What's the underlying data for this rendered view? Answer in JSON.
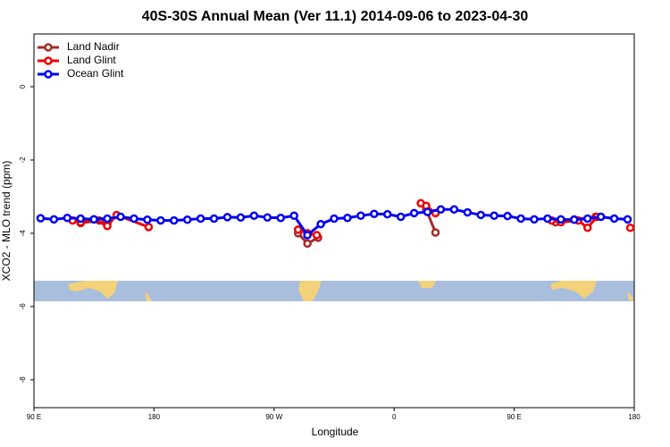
{
  "chart_data": {
    "type": "line",
    "title": "40S-30S Annual Mean (Ver 11.1)   2014-09-06 to 2023-04-30",
    "x_label": "Longitude",
    "y_label": "XCO2 - MLO trend (ppm)",
    "xlim": [
      90,
      540
    ],
    "ylim": [
      -8.76,
      1.44
    ],
    "xticks": [
      {
        "value": 90,
        "label": "90 E"
      },
      180,
      {
        "value": 270,
        "label": "90 W"
      },
      {
        "value": 360,
        "label": "0"
      },
      {
        "value": 450,
        "label": "90 E"
      },
      {
        "value": 540,
        "label": "180"
      }
    ],
    "yticks": [
      0,
      -2,
      -4,
      -6,
      -8
    ],
    "legend": "top-left",
    "series": [
      {
        "name": "Land Nadir",
        "color": "#a52a2a",
        "x": [
          125,
          139,
          145,
          null,
          288,
          295,
          303,
          null,
          384,
          391,
          null,
          481,
          495,
          511
        ],
        "values": [
          -3.72,
          -3.65,
          -3.75,
          null,
          -4.0,
          -4.28,
          -4.12,
          null,
          -3.35,
          -3.98,
          null,
          -3.7,
          -3.62,
          -3.55
        ]
      },
      {
        "name": "Land Glint",
        "color": "#ee0000",
        "x": [
          119,
          125,
          135,
          145,
          152,
          176,
          null,
          288,
          295,
          302,
          null,
          380,
          384,
          391,
          null,
          478,
          485,
          498,
          505,
          512,
          null,
          537
        ],
        "values": [
          -3.65,
          -3.7,
          -3.62,
          -3.8,
          -3.5,
          -3.83,
          null,
          -3.9,
          -4.0,
          -4.05,
          null,
          -3.18,
          -3.25,
          -3.45,
          null,
          -3.65,
          -3.7,
          -3.65,
          -3.85,
          -3.55,
          null,
          -3.85
        ]
      },
      {
        "name": "Ocean Glint",
        "color": "#0000ee",
        "x": [
          95,
          105,
          115,
          125,
          135,
          145,
          155,
          165,
          175,
          185,
          195,
          205,
          215,
          225,
          235,
          245,
          255,
          265,
          275,
          285,
          295,
          305,
          315,
          325,
          335,
          345,
          355,
          365,
          375,
          385,
          395,
          405,
          415,
          425,
          435,
          445,
          455,
          465,
          475,
          485,
          495,
          505,
          515,
          525,
          535
        ],
        "values": [
          -3.59,
          -3.62,
          -3.58,
          -3.6,
          -3.62,
          -3.6,
          -3.55,
          -3.6,
          -3.63,
          -3.65,
          -3.65,
          -3.63,
          -3.6,
          -3.6,
          -3.56,
          -3.57,
          -3.52,
          -3.57,
          -3.58,
          -3.52,
          -4.05,
          -3.75,
          -3.6,
          -3.58,
          -3.52,
          -3.47,
          -3.48,
          -3.55,
          -3.45,
          -3.42,
          -3.35,
          -3.35,
          -3.43,
          -3.5,
          -3.52,
          -3.53,
          -3.6,
          -3.62,
          -3.6,
          -3.62,
          -3.63,
          -3.6,
          -3.55,
          -3.6,
          -3.62
        ]
      }
    ]
  }
}
